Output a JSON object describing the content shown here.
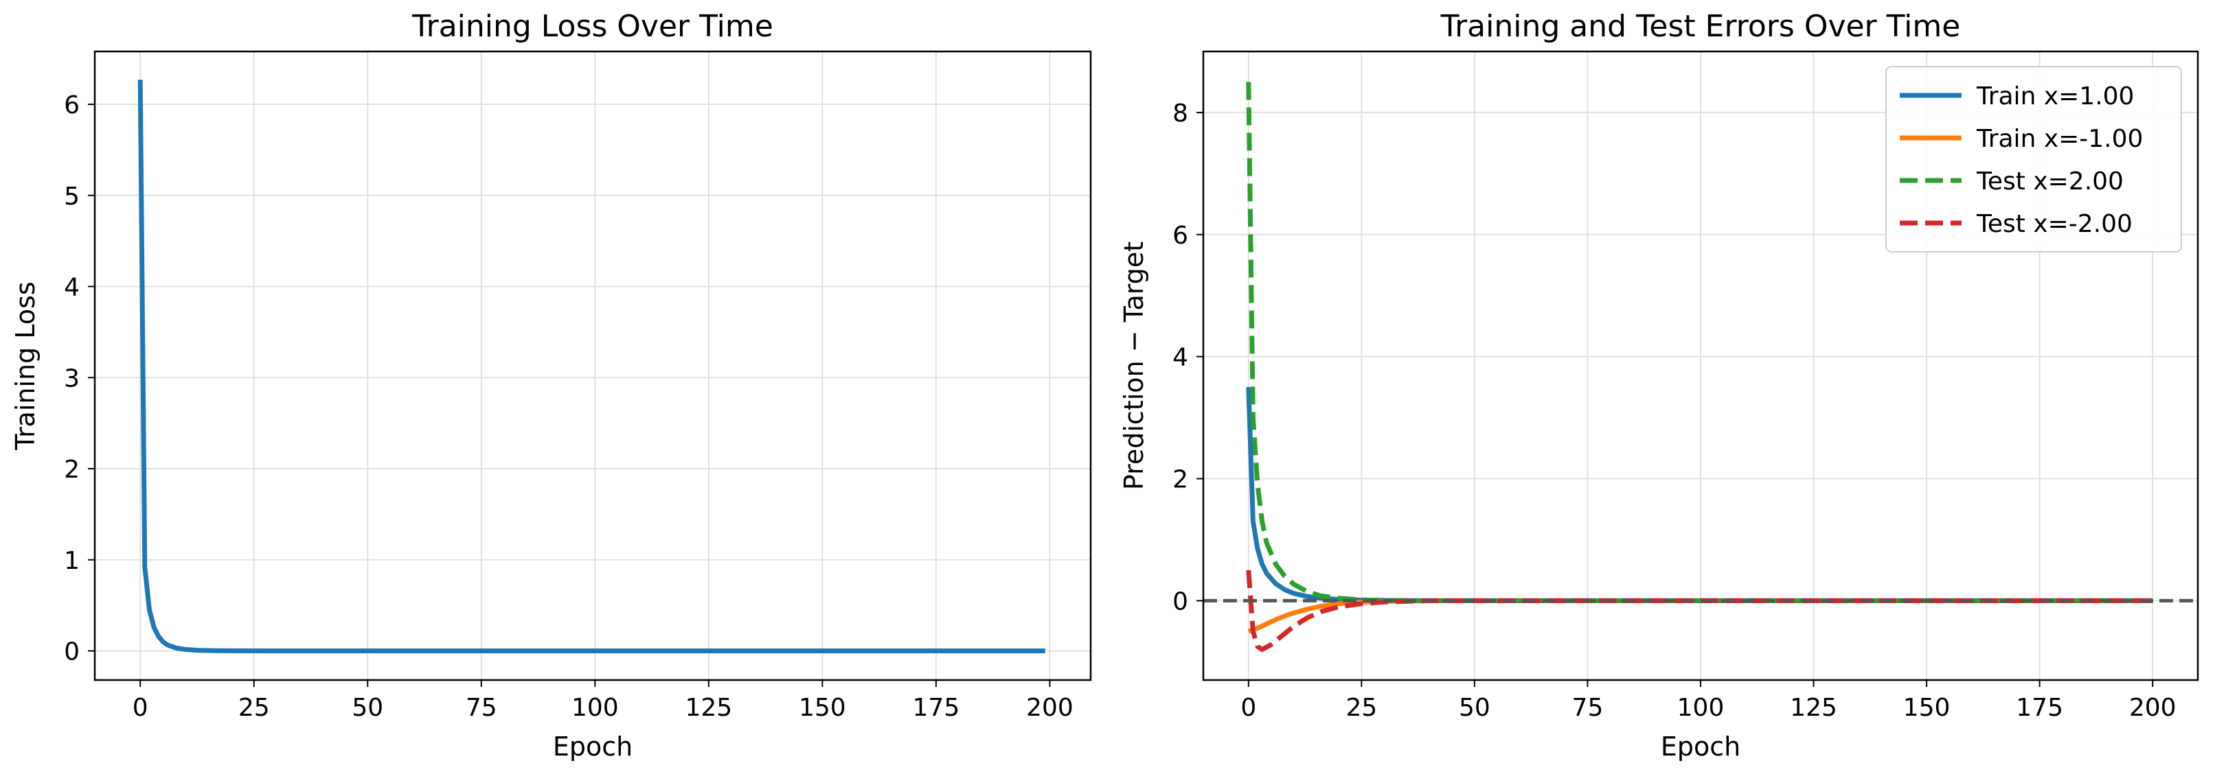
{
  "chart_data": [
    {
      "type": "line",
      "title": "Training Loss Over Time",
      "xlabel": "Epoch",
      "ylabel": "Training Loss",
      "xlim": [
        -10,
        209
      ],
      "ylim": [
        -0.32,
        6.58
      ],
      "xticks": [
        0,
        25,
        50,
        75,
        100,
        125,
        150,
        175,
        200
      ],
      "yticks": [
        0,
        1,
        2,
        3,
        4,
        5,
        6
      ],
      "grid": true,
      "legend": "none",
      "series": [
        {
          "color": "#1f77b4",
          "style": "solid",
          "points": [
            [
              0,
              6.27
            ],
            [
              1,
              0.92
            ],
            [
              2,
              0.45
            ],
            [
              3,
              0.26
            ],
            [
              4,
              0.16
            ],
            [
              5,
              0.1
            ],
            [
              6,
              0.065
            ],
            [
              8,
              0.03
            ],
            [
              10,
              0.015
            ],
            [
              13,
              0.006
            ],
            [
              16,
              0.003
            ],
            [
              20,
              0.001
            ],
            [
              30,
              0.0
            ],
            [
              50,
              0.0
            ],
            [
              100,
              0.0
            ],
            [
              150,
              0.0
            ],
            [
              199,
              0.0
            ]
          ]
        }
      ]
    },
    {
      "type": "line",
      "title": "Training and Test Errors Over Time",
      "xlabel": "Epoch",
      "ylabel": "Prediction − Target",
      "xlim": [
        -10,
        210
      ],
      "ylim": [
        -1.3,
        9.0
      ],
      "xticks": [
        0,
        25,
        50,
        75,
        100,
        125,
        150,
        175,
        200
      ],
      "yticks": [
        0,
        2,
        4,
        6,
        8
      ],
      "grid": true,
      "legend": "top-right",
      "reference_line": {
        "y": 0,
        "color": "#555555",
        "style": "dashed"
      },
      "series": [
        {
          "name": "Train x=1.00",
          "color": "#1f77b4",
          "style": "solid",
          "points": [
            [
              0,
              3.5
            ],
            [
              1,
              1.3
            ],
            [
              2,
              0.85
            ],
            [
              3,
              0.6
            ],
            [
              4,
              0.45
            ],
            [
              6,
              0.28
            ],
            [
              8,
              0.18
            ],
            [
              10,
              0.12
            ],
            [
              13,
              0.07
            ],
            [
              16,
              0.04
            ],
            [
              20,
              0.02
            ],
            [
              25,
              0.01
            ],
            [
              30,
              0.005
            ],
            [
              40,
              0.0
            ],
            [
              60,
              0.0
            ],
            [
              100,
              0.0
            ],
            [
              150,
              0.0
            ],
            [
              200,
              0.0
            ]
          ]
        },
        {
          "name": "Train x=-1.00",
          "color": "#ff7f0e",
          "style": "solid",
          "points": [
            [
              0,
              -0.5
            ],
            [
              2,
              -0.45
            ],
            [
              4,
              -0.38
            ],
            [
              6,
              -0.31
            ],
            [
              8,
              -0.25
            ],
            [
              10,
              -0.2
            ],
            [
              13,
              -0.14
            ],
            [
              16,
              -0.09
            ],
            [
              20,
              -0.05
            ],
            [
              25,
              -0.025
            ],
            [
              30,
              -0.01
            ],
            [
              40,
              0.0
            ],
            [
              60,
              0.0
            ],
            [
              100,
              0.0
            ],
            [
              150,
              0.0
            ],
            [
              200,
              0.0
            ]
          ]
        },
        {
          "name": "Test x=2.00",
          "color": "#2ca02c",
          "style": "dashed",
          "points": [
            [
              0,
              8.5
            ],
            [
              1,
              3.0
            ],
            [
              2,
              1.9
            ],
            [
              3,
              1.3
            ],
            [
              4,
              0.95
            ],
            [
              6,
              0.6
            ],
            [
              8,
              0.4
            ],
            [
              10,
              0.27
            ],
            [
              13,
              0.15
            ],
            [
              16,
              0.08
            ],
            [
              20,
              0.04
            ],
            [
              25,
              0.015
            ],
            [
              30,
              0.005
            ],
            [
              40,
              0.0
            ],
            [
              60,
              0.0
            ],
            [
              100,
              0.0
            ],
            [
              150,
              0.0
            ],
            [
              200,
              0.0
            ]
          ]
        },
        {
          "name": "Test x=-2.00",
          "color": "#d62728",
          "style": "dashed",
          "points": [
            [
              0,
              0.5
            ],
            [
              1,
              -0.5
            ],
            [
              2,
              -0.75
            ],
            [
              3,
              -0.8
            ],
            [
              5,
              -0.72
            ],
            [
              7,
              -0.6
            ],
            [
              10,
              -0.42
            ],
            [
              13,
              -0.28
            ],
            [
              16,
              -0.18
            ],
            [
              20,
              -0.1
            ],
            [
              25,
              -0.05
            ],
            [
              30,
              -0.02
            ],
            [
              40,
              0.0
            ],
            [
              60,
              0.0
            ],
            [
              100,
              0.0
            ],
            [
              150,
              0.0
            ],
            [
              200,
              0.0
            ]
          ]
        }
      ]
    }
  ]
}
